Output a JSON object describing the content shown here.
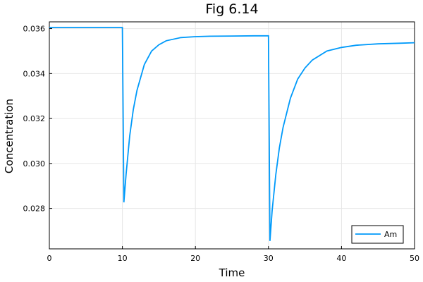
{
  "chart_data": {
    "type": "line",
    "title": "Fig 6.14",
    "xlabel": "Time",
    "ylabel": "Concentration",
    "xlim": [
      0,
      50
    ],
    "ylim": [
      0.0262,
      0.0363
    ],
    "xticks": [
      0,
      10,
      20,
      30,
      40,
      50
    ],
    "xtick_labels": [
      "0",
      "10",
      "20",
      "30",
      "40",
      "50"
    ],
    "yticks": [
      0.028,
      0.03,
      0.032,
      0.034,
      0.036
    ],
    "ytick_labels": [
      "0.028",
      "0.030",
      "0.032",
      "0.034",
      "0.036"
    ],
    "grid": true,
    "legend_position": "bottom-right",
    "series": [
      {
        "name": "Am",
        "color": "#009AFA",
        "x": [
          0,
          10,
          10.2,
          10.5,
          11,
          11.5,
          12,
          13,
          14,
          15,
          16,
          18,
          20,
          22,
          25,
          28,
          30,
          30.2,
          30.5,
          31,
          31.5,
          32,
          33,
          34,
          35,
          36,
          38,
          40,
          42,
          45,
          48,
          50
        ],
        "y": [
          0.03605,
          0.03605,
          0.02827,
          0.0295,
          0.03123,
          0.0324,
          0.03325,
          0.0344,
          0.035,
          0.03528,
          0.03546,
          0.0356,
          0.03564,
          0.03566,
          0.03567,
          0.03568,
          0.03568,
          0.02655,
          0.0279,
          0.0295,
          0.0307,
          0.0316,
          0.0329,
          0.03375,
          0.03425,
          0.0346,
          0.035,
          0.03516,
          0.03526,
          0.03532,
          0.03535,
          0.03537
        ]
      }
    ]
  }
}
